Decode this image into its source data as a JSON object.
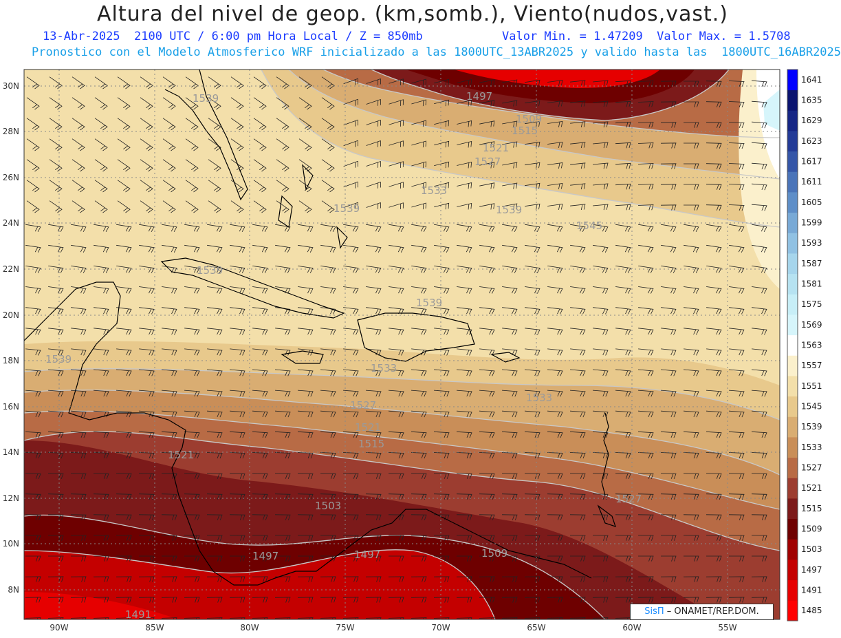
{
  "header": {
    "title": "Altura del nivel de geop. (km,somb.), Viento(nudos,vast.)",
    "subtitle_left": "13-Abr-2025  2100 UTC / 6:00 pm Hora Local / Z = 850mb",
    "subtitle_right": "Valor Min. = 1.47209  Valor Max. = 1.5708",
    "subtitle_2": "Pronostico con el Modelo Atmosferico WRF inicializado a las 1800UTC_13ABR2025 y valido hasta las  1800UTC_16ABR2025"
  },
  "credit": {
    "brand": "SisΠ",
    "text": " – ONAMET/REP.DOM."
  },
  "map": {
    "lon_labels": [
      "90W",
      "85W",
      "80W",
      "75W",
      "70W",
      "65W",
      "60W",
      "55W"
    ],
    "lat_labels": [
      "8N",
      "10N",
      "12N",
      "14N",
      "16N",
      "18N",
      "20N",
      "22N",
      "24N",
      "26N",
      "28N",
      "30N"
    ],
    "contour_labels": [
      "1497",
      "1509",
      "1515",
      "1521",
      "1527",
      "1533",
      "1539",
      "1539",
      "1539",
      "1539",
      "1545",
      "1539",
      "1533",
      "1527",
      "1521",
      "1515",
      "1521",
      "1503",
      "1497",
      "1497",
      "1509",
      "1491",
      "1539",
      "1533",
      "1527"
    ]
  },
  "colorbar": {
    "ticks": [
      "1485",
      "1491",
      "1497",
      "1503",
      "1509",
      "1515",
      "1521",
      "1527",
      "1533",
      "1539",
      "1545",
      "1551",
      "1557",
      "1563",
      "1569",
      "1575",
      "1581",
      "1587",
      "1593",
      "1599",
      "1605",
      "1611",
      "1617",
      "1623",
      "1629",
      "1635",
      "1641"
    ],
    "colors": [
      "#ff0000",
      "#e60000",
      "#c40000",
      "#a00000",
      "#6e0000",
      "#7c1a1a",
      "#9c3d30",
      "#b86b45",
      "#c98e58",
      "#d9ad72",
      "#e8c98c",
      "#f3dfaa",
      "#fbf0cc",
      "#ffffff",
      "#d6f5fb",
      "#c7eef7",
      "#b6e2f1",
      "#a6d5ec",
      "#90c1e3",
      "#78a9d6",
      "#5e8ec8",
      "#4a74b9",
      "#3556a8",
      "#233b97",
      "#162685",
      "#0b1470",
      "#0000ff"
    ]
  }
}
